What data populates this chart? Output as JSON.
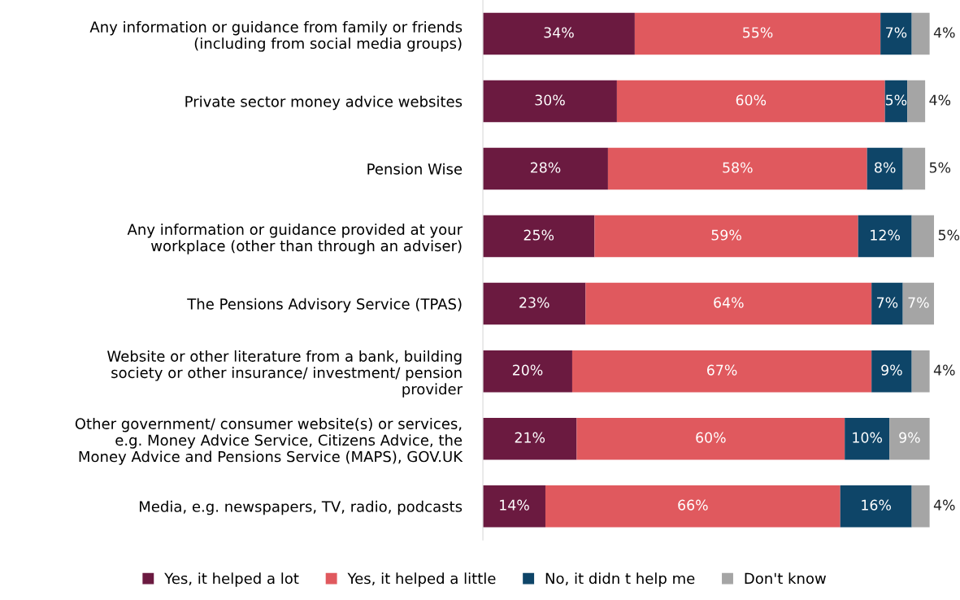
{
  "chart_data": {
    "type": "bar",
    "orientation": "horizontal",
    "stacked": true,
    "legend": "bottom",
    "grid": false,
    "categories": [
      "Any information or guidance from family or friends\n(including from social media groups)",
      "Private sector money advice websites",
      "Pension Wise",
      "Any information or guidance provided at your\nworkplace (other than through an adviser)",
      "The Pensions Advisory Service (TPAS)",
      "Website or other literature from a bank, building\nsociety or other insurance/ investment/ pension\nprovider",
      "Other government/ consumer website(s) or services,\ne.g. Money Advice Service, Citizens Advice, the\nMoney Advice and Pensions Service (MAPS), GOV.UK",
      "Media, e.g. newspapers, TV, radio, podcasts"
    ],
    "series": [
      {
        "name": "Yes, it helped a lot",
        "color": "#6b1a40",
        "values": [
          34,
          30,
          28,
          25,
          23,
          20,
          21,
          14
        ],
        "value_labels": [
          "34%",
          "30%",
          "28%",
          "25%",
          "23%",
          "20%",
          "21%",
          "14%"
        ]
      },
      {
        "name": "Yes, it helped a little",
        "color": "#e0595e",
        "values": [
          55,
          60,
          58,
          59,
          64,
          67,
          60,
          66
        ],
        "value_labels": [
          "55%",
          "60%",
          "58%",
          "59%",
          "64%",
          "67%",
          "60%",
          "66%"
        ]
      },
      {
        "name": "No, it didn t help me",
        "color": "#0e4568",
        "values": [
          7,
          5,
          8,
          12,
          7,
          9,
          10,
          16
        ],
        "value_labels": [
          "7%",
          "5%",
          "8%",
          "12%",
          "7%",
          "9%",
          "10%",
          "16%"
        ]
      },
      {
        "name": "Don't know",
        "color": "#a5a5a5",
        "values": [
          4,
          4,
          5,
          5,
          7,
          4,
          9,
          4
        ],
        "value_labels": [
          "4%",
          "4%",
          "5%",
          "5%",
          "7%",
          "4%",
          "9%",
          "4%"
        ]
      }
    ]
  }
}
